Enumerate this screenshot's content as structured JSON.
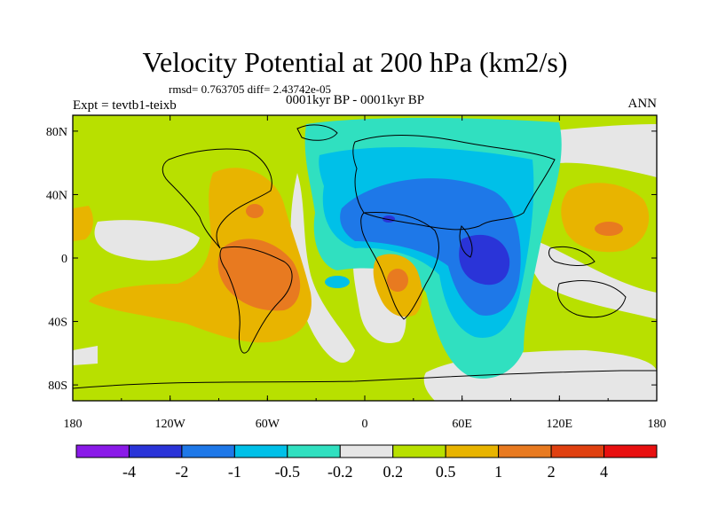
{
  "title": "Velocity Potential at 200 hPa (km2/s)",
  "stats": "rmsd= 0.763705 diff= 2.43742e-05",
  "experiment": "Expt = tevtb1-teixb",
  "period": "0001kyr BP - 0001kyr BP",
  "season": "ANN",
  "x_ticks": [
    {
      "lon": -180,
      "label": "180"
    },
    {
      "lon": -120,
      "label": "120W"
    },
    {
      "lon": -60,
      "label": "60W"
    },
    {
      "lon": 0,
      "label": "0"
    },
    {
      "lon": 60,
      "label": "60E"
    },
    {
      "lon": 120,
      "label": "120E"
    },
    {
      "lon": 180,
      "label": "180"
    }
  ],
  "y_ticks": [
    {
      "lat": 80,
      "label": "80N"
    },
    {
      "lat": 40,
      "label": "40N"
    },
    {
      "lat": 0,
      "label": "0"
    },
    {
      "lat": -40,
      "label": "40S"
    },
    {
      "lat": -80,
      "label": "80S"
    }
  ],
  "colorbar": {
    "colors": [
      "#8a1ae8",
      "#2a34d8",
      "#1e78e8",
      "#00c0e8",
      "#30e0c0",
      "#e6e6e6",
      "#b8e000",
      "#e8b400",
      "#e87a20",
      "#e04010",
      "#e81010"
    ],
    "labels": [
      "-4",
      "-2",
      "-1",
      "-0.5",
      "-0.2",
      "0.2",
      "0.5",
      "1",
      "2",
      "4"
    ]
  }
}
